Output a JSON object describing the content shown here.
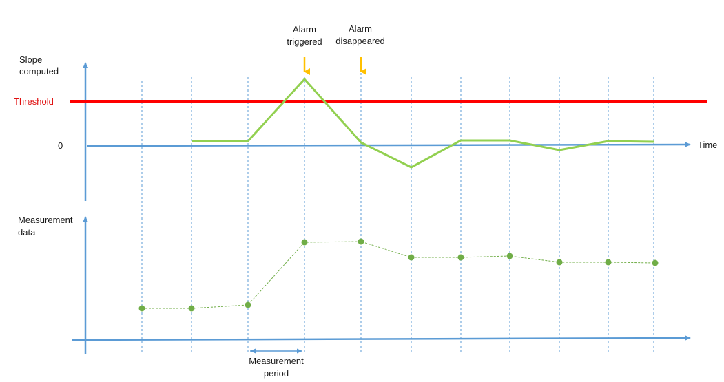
{
  "labels": {
    "top_y_axis": [
      "Slope",
      "computed"
    ],
    "bottom_y_axis": [
      "Measurement",
      "data"
    ],
    "threshold": "Threshold",
    "zero": "0",
    "time": "Time",
    "alarm_triggered": [
      "Alarm",
      "triggered"
    ],
    "alarm_disappeared": [
      "Alarm",
      "disappeared"
    ],
    "measurement_period": [
      "Measurement",
      "period"
    ]
  },
  "colors": {
    "axis": "#5b9bd5",
    "threshold": "#ff0000",
    "slope": "#92d050",
    "measurement": "#70ad47",
    "alarm_arrow": "#ffc000"
  }
}
